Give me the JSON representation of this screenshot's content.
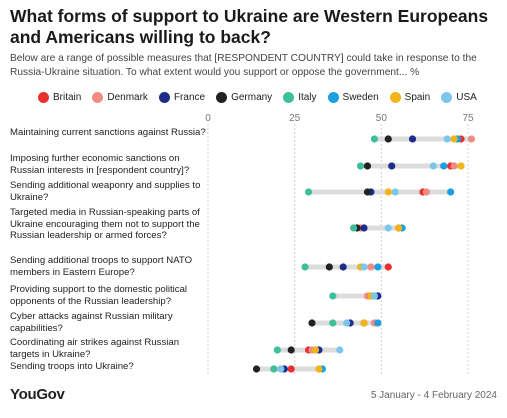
{
  "title": "What forms of support to Ukraine are Western Europeans and Americans willing to back?",
  "subtitle": "Below are a range of possible measures that [RESPONDENT COUNTRY] could take in response to the Russia-Ukraine situation. To what extent would you support or oppose the government... %",
  "footer": {
    "brand": "YouGov",
    "date_range": "5 January - 4 February 2024"
  },
  "chart_data": {
    "type": "scatter",
    "title": "What forms of support to Ukraine are Western Europeans and Americans willing to back?",
    "xlim": [
      0,
      80
    ],
    "xticks": [
      0,
      25,
      50,
      75
    ],
    "series": [
      {
        "name": "Britain",
        "color": "#e8312f"
      },
      {
        "name": "Denmark",
        "color": "#f28b82"
      },
      {
        "name": "France",
        "color": "#1f2d8a"
      },
      {
        "name": "Germany",
        "color": "#222222"
      },
      {
        "name": "Italy",
        "color": "#3cbf9a"
      },
      {
        "name": "Sweden",
        "color": "#1a9fe0"
      },
      {
        "name": "Spain",
        "color": "#f2b41b"
      },
      {
        "name": "USA",
        "color": "#7cc6ee"
      }
    ],
    "categories": [
      {
        "label": "Maintaining current sanctions against Russia?",
        "values": [
          73,
          76,
          59,
          52,
          48,
          72,
          71,
          69
        ]
      },
      {
        "label": "Imposing further economic sanctions on Russian interests in [respondent country]?",
        "values": [
          70,
          71,
          53,
          46,
          44,
          68,
          73,
          65
        ]
      },
      {
        "label": "Sending additional weaponry and supplies to Ukraine?",
        "values": [
          62,
          63,
          47,
          46,
          29,
          70,
          52,
          54
        ]
      },
      {
        "label": "Targeted media in Russian-speaking parts of Ukraine encouraging them not to support the Russian leadership or armed forces?",
        "values": [
          55,
          44,
          45,
          43,
          42,
          56,
          55,
          52
        ]
      },
      {
        "label": "Sending additional troops to support NATO members in Eastern Europe?",
        "values": [
          52,
          47,
          39,
          35,
          28,
          49,
          44,
          45
        ]
      },
      {
        "label": "Providing support to the domestic political opponents of the Russian leadership?",
        "values": [
          48,
          46,
          49,
          47,
          36,
          48,
          47,
          48
        ]
      },
      {
        "label": "Cyber attacks against Russian military capabilities?",
        "values": [
          45,
          48,
          41,
          30,
          36,
          49,
          45,
          40
        ]
      },
      {
        "label": "Coordinating air strikes against Russian targets in Ukraine?",
        "values": [
          29,
          30,
          32,
          24,
          20,
          31,
          31,
          38
        ]
      },
      {
        "label": "Sending troops into Ukraine?",
        "values": [
          24,
          19,
          22,
          14,
          19,
          33,
          32,
          21
        ]
      }
    ]
  }
}
